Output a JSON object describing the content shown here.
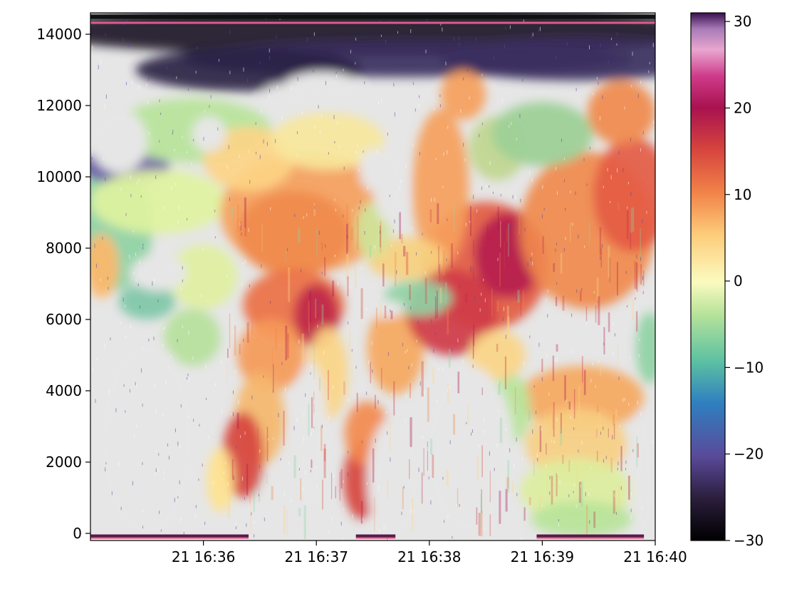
{
  "chart_data": {
    "type": "heatmap",
    "title": "",
    "xlabel": "",
    "ylabel": "",
    "x_tick_labels": [
      "21 16:36",
      "21 16:37",
      "21 16:38",
      "21 16:39",
      "21 16:40"
    ],
    "y_tick_labels": [
      "0",
      "2000",
      "4000",
      "6000",
      "8000",
      "10000",
      "12000",
      "14000"
    ],
    "y_ticks": [
      0,
      2000,
      4000,
      6000,
      8000,
      10000,
      12000,
      14000
    ],
    "ylim": [
      -200,
      14600
    ],
    "xlim_minutes_of_hour": [
      35.0,
      40.0
    ],
    "x_tick_minutes": [
      36,
      37,
      38,
      39,
      40
    ],
    "colorbar": {
      "tick_labels": [
        "30",
        "20",
        "10",
        "0",
        "−10",
        "−20",
        "−30"
      ],
      "ticks": [
        30,
        20,
        10,
        0,
        -10,
        -20,
        -30
      ],
      "range": [
        -30,
        31
      ],
      "colormap": "Spectral_r-like (black-purple-blue-green-yellow-orange-red-magenta-pink-purple)"
    },
    "background_no_data_color": "#e6e6e6",
    "grid": false,
    "legend": "colorbar-right"
  }
}
